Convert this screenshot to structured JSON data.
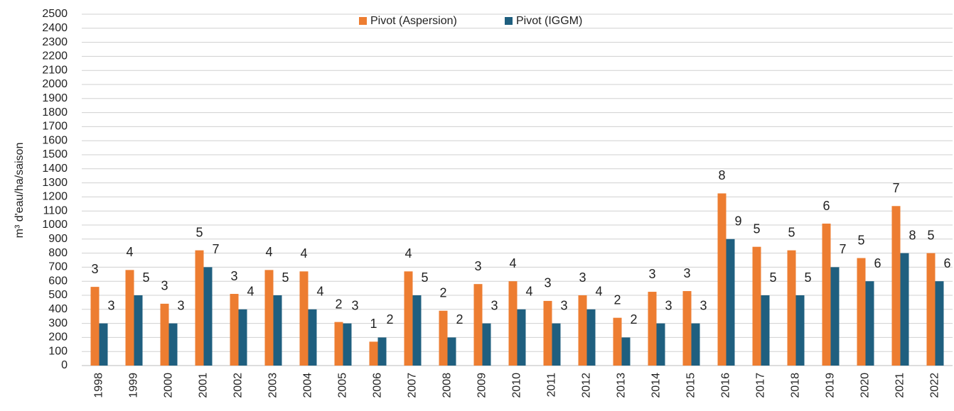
{
  "chart_data": {
    "type": "bar",
    "y_label": "m³ d'eau/ha/saison",
    "categories": [
      "1998",
      "1999",
      "2000",
      "2001",
      "2002",
      "2003",
      "2004",
      "2005",
      "2006",
      "2007",
      "2008",
      "2009",
      "2010",
      "2011",
      "2012",
      "2013",
      "2014",
      "2015",
      "2016",
      "2017",
      "2018",
      "2019",
      "2020",
      "2021",
      "2022"
    ],
    "series": [
      {
        "name": "Pivot (Aspersion)",
        "color": "#ed7d31",
        "values": [
          560,
          680,
          440,
          820,
          510,
          680,
          670,
          310,
          170,
          670,
          390,
          580,
          600,
          460,
          500,
          340,
          525,
          530,
          1225,
          845,
          820,
          1010,
          765,
          1135,
          800
        ],
        "labels": [
          3,
          4,
          3,
          5,
          3,
          4,
          4,
          2,
          1,
          4,
          2,
          3,
          4,
          3,
          3,
          2,
          3,
          3,
          8,
          5,
          5,
          6,
          5,
          7,
          5
        ]
      },
      {
        "name": "Pivot (IGGM)",
        "color": "#1f5f7f",
        "values": [
          300,
          500,
          300,
          700,
          400,
          500,
          400,
          300,
          200,
          500,
          200,
          300,
          400,
          300,
          400,
          200,
          300,
          300,
          900,
          500,
          500,
          700,
          600,
          800,
          600
        ],
        "labels": [
          3,
          5,
          3,
          7,
          4,
          5,
          4,
          3,
          2,
          5,
          2,
          3,
          4,
          3,
          4,
          2,
          3,
          3,
          9,
          5,
          5,
          7,
          6,
          8,
          6
        ]
      }
    ],
    "ylim": [
      0,
      2500
    ],
    "yticks": [
      0,
      100,
      200,
      300,
      400,
      500,
      600,
      700,
      800,
      900,
      1000,
      1100,
      1200,
      1300,
      1400,
      1500,
      1600,
      1700,
      1800,
      1900,
      2000,
      2100,
      2200,
      2300,
      2400,
      2500
    ],
    "grid": true,
    "legend": "top"
  }
}
